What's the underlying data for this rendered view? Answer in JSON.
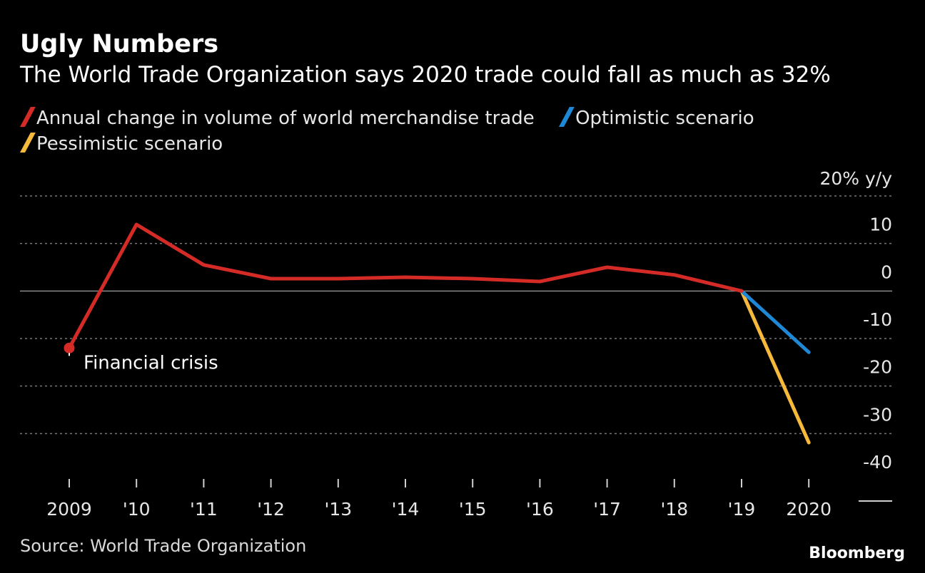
{
  "title": "Ugly Numbers",
  "subtitle": "The World Trade Organization says 2020 trade could fall as much as 32%",
  "source": "Source: World Trade Organization",
  "brand": "Bloomberg",
  "chart_data": {
    "type": "line",
    "title": "Ugly Numbers",
    "subtitle": "The World Trade Organization says 2020 trade could fall as much as 32%",
    "categories": [
      "2009",
      "'10",
      "'11",
      "'12",
      "'13",
      "'14",
      "'15",
      "'16",
      "'17",
      "'18",
      "'19",
      "2020"
    ],
    "ylim": [
      -40,
      20
    ],
    "y_unit_label": "20% y/y",
    "yticks": [
      {
        "value": 20,
        "label": "20% y/y"
      },
      {
        "value": 10,
        "label": "10"
      },
      {
        "value": 0,
        "label": "0"
      },
      {
        "value": -10,
        "label": "-10"
      },
      {
        "value": -20,
        "label": "-20"
      },
      {
        "value": -30,
        "label": "-30"
      },
      {
        "value": -40,
        "label": "-40"
      }
    ],
    "grid": true,
    "legend_position": "top",
    "series": [
      {
        "name": "Annual change in volume of world merchandise trade",
        "color": "#d42b27",
        "x": [
          "2009",
          "'10",
          "'11",
          "'12",
          "'13",
          "'14",
          "'15",
          "'16",
          "'17",
          "'18",
          "'19"
        ],
        "values": [
          -12.0,
          14.0,
          5.5,
          2.6,
          2.6,
          2.9,
          2.6,
          2.0,
          5.0,
          3.4,
          0.0
        ]
      },
      {
        "name": "Optimistic scenario",
        "color": "#1e88d6",
        "x": [
          "'19",
          "2020"
        ],
        "values": [
          0.0,
          -12.9
        ]
      },
      {
        "name": "Pessimistic scenario",
        "color": "#f6b93b",
        "x": [
          "'19",
          "2020"
        ],
        "values": [
          0.0,
          -31.9
        ]
      }
    ],
    "annotations": [
      {
        "x": "2009",
        "y": -12.0,
        "text": "Financial crisis"
      }
    ]
  }
}
